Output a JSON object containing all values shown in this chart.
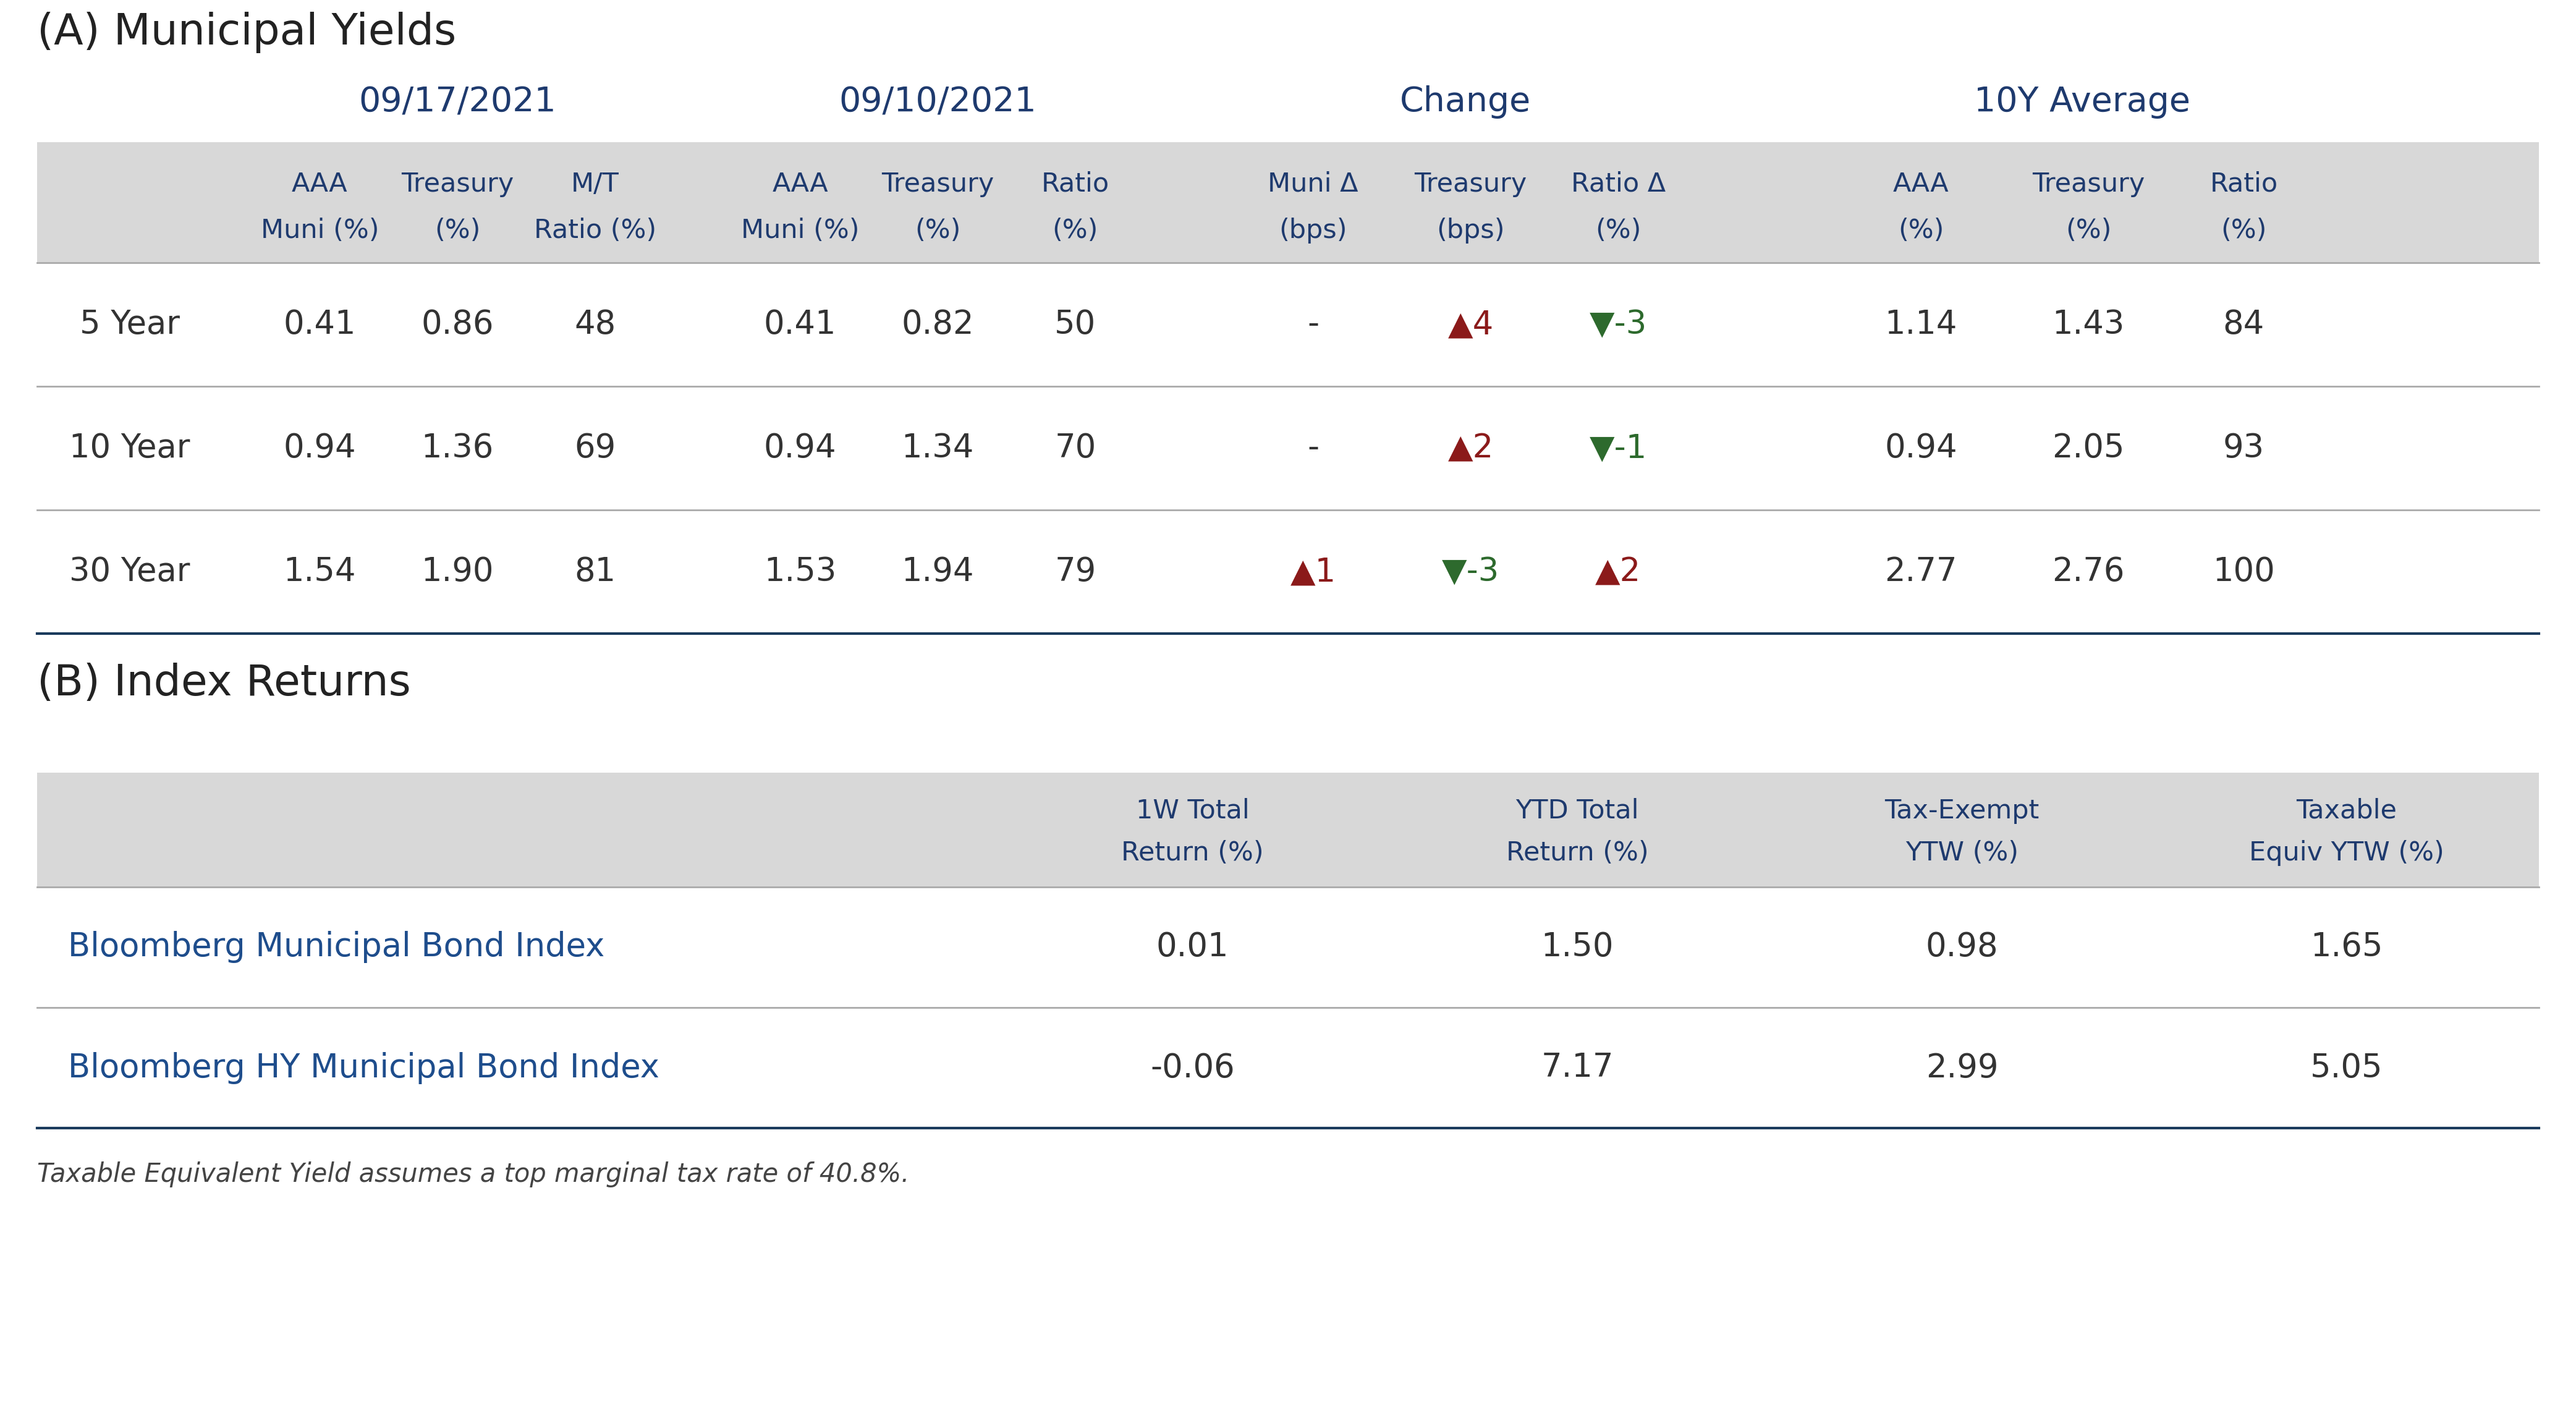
{
  "title_a": "(A) Municipal Yields",
  "title_b": "(B) Index Returns",
  "footnote": "Taxable Equivalent Yield assumes a top marginal tax rate of 40.8%.",
  "bg_color": "#d8d8d8",
  "white": "#ffffff",
  "blue_label": "#1e3a6e",
  "dark_text": "#333333",
  "line_color": "#1a3a5c",
  "footnote_color": "#444444",
  "date1": "09/17/2021",
  "date2": "09/10/2021",
  "date3": "Change",
  "date4": "10Y Average",
  "col_headers_line1": [
    "AAA",
    "Treasury",
    "M/T",
    "AAA",
    "Treasury",
    "Ratio",
    "Muni Δ",
    "Treasury",
    "Ratio Δ",
    "AAA",
    "Treasury",
    "Ratio"
  ],
  "col_headers_line2": [
    "Muni (%)",
    "(%)",
    "Ratio (%)",
    "Muni (%)",
    "(%)",
    "(%)",
    "(bps)",
    "(bps)",
    "(%)",
    "(%)",
    "(%)",
    "(%)"
  ],
  "row_labels": [
    "5 Year",
    "10 Year",
    "30 Year"
  ],
  "table_data": [
    [
      "0.41",
      "0.86",
      "48",
      "0.41",
      "0.82",
      "50",
      "-",
      "▲4",
      "▼-3",
      "1.14",
      "1.43",
      "84"
    ],
    [
      "0.94",
      "1.36",
      "69",
      "0.94",
      "1.34",
      "70",
      "-",
      "▲2",
      "▼-1",
      "0.94",
      "2.05",
      "93"
    ],
    [
      "1.54",
      "1.90",
      "81",
      "1.53",
      "1.94",
      "79",
      "▲1",
      "▼-3",
      "▲2",
      "2.77",
      "2.76",
      "100"
    ]
  ],
  "cell_colors": [
    [
      "n",
      "n",
      "n",
      "n",
      "n",
      "n",
      "n",
      "up",
      "down",
      "n",
      "n",
      "n"
    ],
    [
      "n",
      "n",
      "n",
      "n",
      "n",
      "n",
      "n",
      "up",
      "down",
      "n",
      "n",
      "n"
    ],
    [
      "n",
      "n",
      "n",
      "n",
      "n",
      "n",
      "up",
      "down",
      "up",
      "n",
      "n",
      "n"
    ]
  ],
  "index_headers": [
    "1W Total\nReturn (%)",
    "YTD Total\nReturn (%)",
    "Tax-Exempt\nYTW (%)",
    "Taxable\nEquiv YTW (%)"
  ],
  "index_rows": [
    [
      "Bloomberg Municipal Bond Index",
      "0.01",
      "1.50",
      "0.98",
      "1.65"
    ],
    [
      "Bloomberg HY Municipal Bond Index",
      "-0.06",
      "7.17",
      "2.99",
      "5.05"
    ]
  ],
  "up_color": "#8b1a1a",
  "down_color": "#2d6a2d",
  "label_blue": "#1e4d8c"
}
